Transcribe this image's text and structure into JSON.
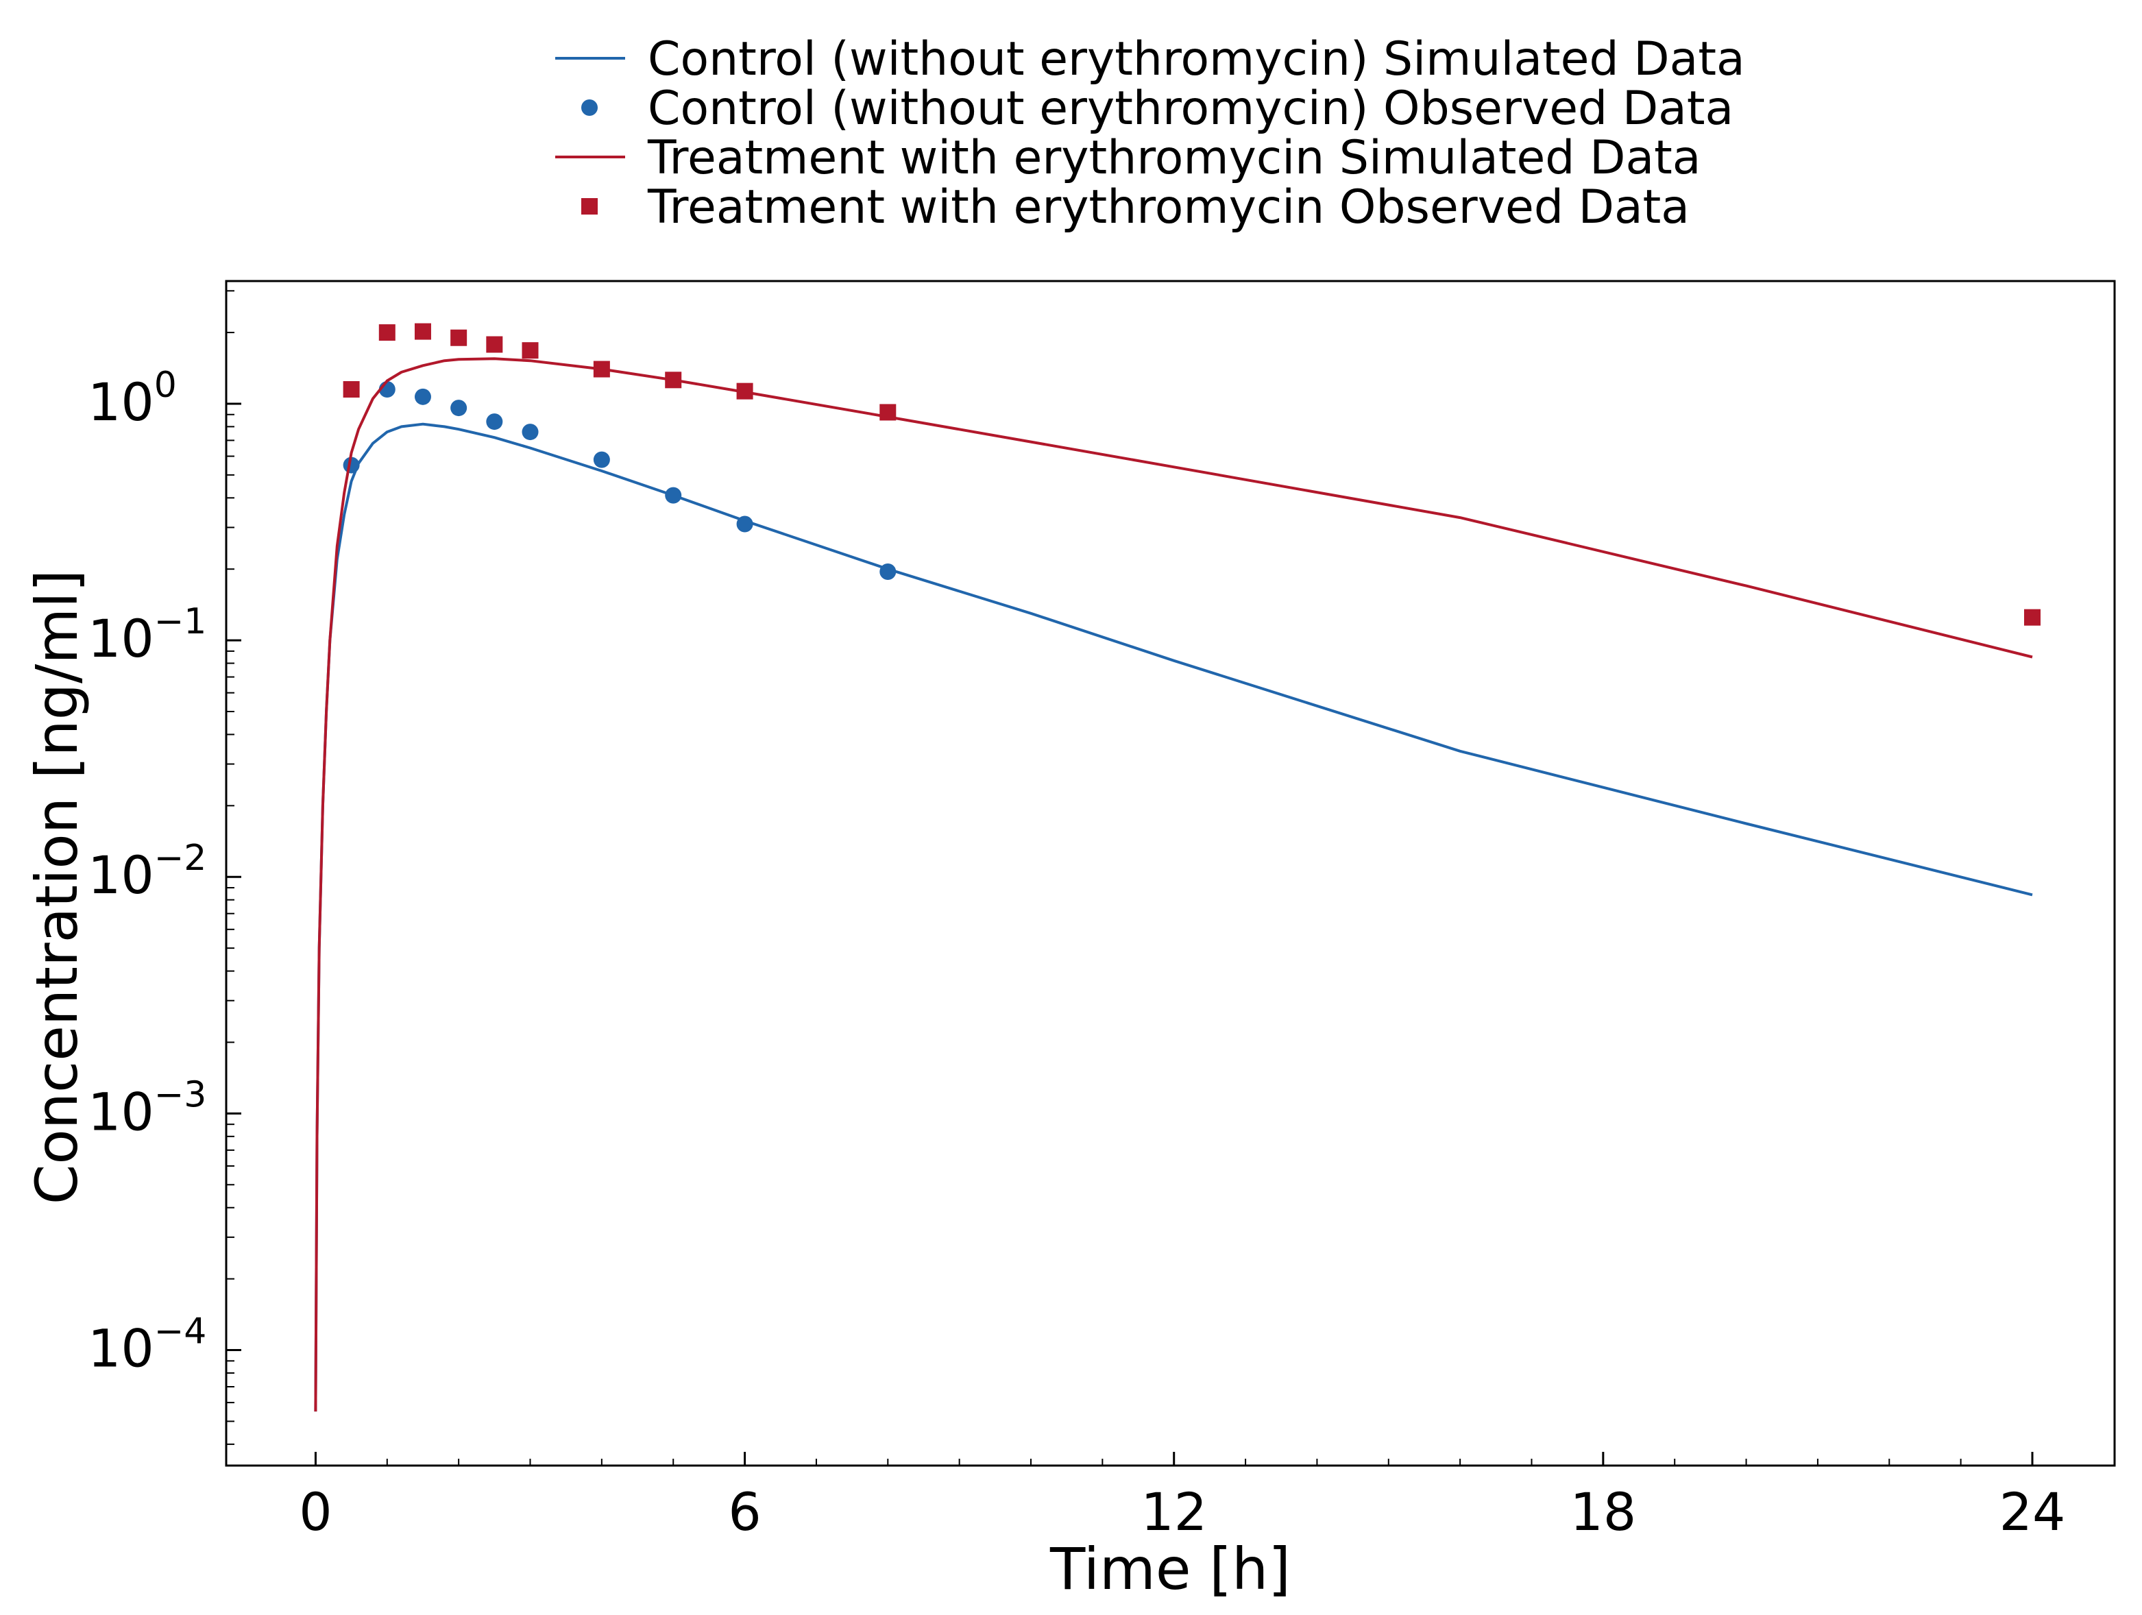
{
  "chart_data": {
    "type": "line",
    "title": "",
    "xlabel": "Time [h]",
    "ylabel": "Concentration [ng/ml]",
    "xscale": "linear",
    "yscale": "log",
    "xlim": [
      -1.25,
      25.15
    ],
    "ylim": [
      3.25e-05,
      3.3
    ],
    "xticks": [
      0,
      6,
      12,
      18,
      24
    ],
    "xtick_labels": [
      "0",
      "6",
      "12",
      "18",
      "24"
    ],
    "yticks": [
      0.0001,
      0.001,
      0.01,
      0.1,
      1
    ],
    "ytick_labels": [
      {
        "base": "10",
        "exp": "−4"
      },
      {
        "base": "10",
        "exp": "−3"
      },
      {
        "base": "10",
        "exp": "−2"
      },
      {
        "base": "10",
        "exp": "−1"
      },
      {
        "base": "10",
        "exp": "0"
      }
    ],
    "grid": false,
    "legend_position": "top-center",
    "series": [
      {
        "name": "Control (without erythromycin) Simulated Data",
        "kind": "line",
        "color": "#2166ac",
        "x": [
          0.0,
          0.02,
          0.05,
          0.1,
          0.15,
          0.2,
          0.3,
          0.4,
          0.5,
          0.6,
          0.8,
          1.0,
          1.2,
          1.5,
          1.8,
          2.0,
          2.5,
          3.0,
          4.0,
          5.0,
          6.0,
          8.0,
          10.0,
          12.0,
          16.0,
          20.0,
          24.0
        ],
        "y": [
          5.5e-05,
          0.0008,
          0.005,
          0.02,
          0.05,
          0.1,
          0.22,
          0.34,
          0.47,
          0.56,
          0.68,
          0.76,
          0.8,
          0.82,
          0.8,
          0.78,
          0.72,
          0.65,
          0.52,
          0.41,
          0.32,
          0.2,
          0.13,
          0.082,
          0.034,
          0.0168,
          0.0084
        ]
      },
      {
        "name": "Control (without erythromycin) Observed Data",
        "kind": "scatter",
        "marker": "circle",
        "color": "#2166ac",
        "x": [
          0.5,
          1.0,
          1.5,
          2.0,
          2.5,
          3.0,
          4.0,
          5.0,
          6.0,
          8.0
        ],
        "y": [
          0.55,
          1.15,
          1.07,
          0.96,
          0.84,
          0.76,
          0.58,
          0.41,
          0.31,
          0.195
        ]
      },
      {
        "name": "Treatment with erythromycin Simulated Data",
        "kind": "line",
        "color": "#b2182b",
        "x": [
          0.0,
          0.02,
          0.05,
          0.1,
          0.15,
          0.2,
          0.3,
          0.4,
          0.5,
          0.6,
          0.8,
          1.0,
          1.2,
          1.5,
          1.8,
          2.0,
          2.5,
          3.0,
          4.0,
          5.0,
          6.0,
          8.0,
          10.0,
          12.0,
          16.0,
          20.0,
          24.0
        ],
        "y": [
          5.5e-05,
          0.0008,
          0.005,
          0.02,
          0.05,
          0.1,
          0.25,
          0.42,
          0.62,
          0.78,
          1.05,
          1.25,
          1.36,
          1.45,
          1.52,
          1.54,
          1.55,
          1.52,
          1.4,
          1.26,
          1.12,
          0.88,
          0.69,
          0.54,
          0.33,
          0.17,
          0.085
        ]
      },
      {
        "name": "Treatment with erythromycin Observed Data",
        "kind": "scatter",
        "marker": "square",
        "color": "#b2182b",
        "x": [
          0.5,
          1.0,
          1.5,
          2.0,
          2.5,
          3.0,
          4.0,
          5.0,
          6.0,
          8.0,
          24.0
        ],
        "y": [
          1.15,
          2.0,
          2.02,
          1.9,
          1.78,
          1.68,
          1.4,
          1.26,
          1.13,
          0.92,
          0.125
        ]
      }
    ]
  }
}
